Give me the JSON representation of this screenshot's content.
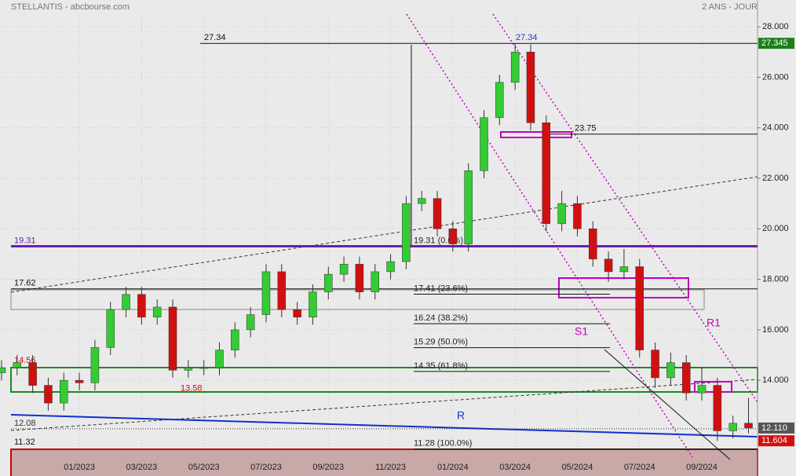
{
  "header": {
    "title": "STELLANTIS - abcbourse.com",
    "period": "2 ANS - JOUR"
  },
  "chart_data": {
    "type": "candlestick",
    "x": [
      -2.5,
      -2,
      -1.5,
      -1,
      -0.5,
      0,
      0.5,
      1,
      1.5,
      2,
      2.5,
      3,
      3.5,
      4,
      4.5,
      5,
      5.5,
      6,
      6.5,
      7,
      7.5,
      8,
      8.5,
      9,
      9.5,
      10,
      10.5,
      11,
      11.5,
      12,
      12.5,
      13,
      13.5,
      14,
      14.5,
      15,
      15.5,
      16,
      16.5,
      17,
      17.5,
      18,
      18.5,
      19,
      19.5,
      20,
      20.5,
      21,
      21.5
    ],
    "open": [
      14.3,
      14.5,
      14.7,
      13.8,
      13.1,
      14.0,
      13.9,
      15.3,
      16.8,
      17.4,
      16.5,
      16.9,
      14.4,
      14.5,
      14.5,
      15.2,
      16.0,
      16.6,
      18.3,
      16.8,
      16.5,
      17.5,
      18.2,
      18.6,
      17.5,
      18.3,
      18.7,
      21.0,
      21.2,
      20.0,
      19.4,
      22.3,
      24.4,
      25.8,
      27.0,
      24.2,
      20.2,
      21.0,
      20.0,
      18.8,
      18.3,
      18.5,
      15.2,
      14.1,
      14.7,
      13.5,
      13.8,
      12.0,
      12.3
    ],
    "high": [
      14.8,
      15.0,
      15.0,
      14.1,
      14.3,
      14.3,
      15.6,
      17.1,
      17.7,
      17.7,
      17.2,
      17.2,
      14.8,
      14.8,
      15.5,
      16.3,
      16.9,
      18.6,
      18.6,
      17.1,
      17.8,
      18.5,
      18.9,
      18.9,
      18.6,
      19.0,
      21.3,
      21.5,
      21.5,
      20.3,
      22.6,
      24.7,
      26.1,
      27.34,
      27.3,
      24.5,
      21.5,
      21.3,
      20.3,
      19.1,
      19.2,
      18.8,
      15.5,
      15.1,
      15.0,
      14.5,
      14.1,
      12.6,
      13.3
    ],
    "low": [
      14.0,
      14.2,
      13.5,
      12.8,
      12.8,
      13.6,
      13.6,
      15.0,
      16.5,
      16.2,
      16.2,
      14.1,
      14.1,
      14.2,
      14.2,
      14.9,
      15.7,
      16.3,
      16.5,
      16.2,
      16.2,
      17.2,
      17.9,
      17.2,
      17.2,
      18.0,
      18.4,
      20.7,
      19.7,
      19.1,
      19.1,
      22.0,
      24.1,
      25.5,
      23.9,
      19.9,
      19.9,
      19.7,
      18.5,
      17.9,
      18.0,
      14.9,
      13.7,
      13.8,
      13.2,
      13.2,
      11.6,
      11.7,
      11.9
    ],
    "close": [
      14.5,
      14.7,
      13.8,
      13.1,
      14.0,
      13.9,
      15.3,
      16.8,
      17.4,
      16.5,
      16.9,
      14.4,
      14.5,
      14.5,
      15.2,
      16.0,
      16.6,
      18.3,
      16.8,
      16.5,
      17.5,
      18.2,
      18.6,
      17.5,
      18.3,
      18.7,
      21.0,
      21.2,
      20.0,
      19.4,
      22.3,
      24.4,
      25.8,
      27.0,
      24.2,
      20.2,
      21.0,
      20.0,
      18.8,
      18.3,
      18.5,
      15.2,
      14.1,
      14.7,
      13.5,
      13.8,
      12.0,
      12.3,
      12.11
    ],
    "up_color": "#33cc33",
    "down_color": "#d01010",
    "xlim": [
      -2.55,
      21.79
    ],
    "xticks": [
      {
        "value": 0,
        "label": "01/2023"
      },
      {
        "value": 2,
        "label": "03/2023"
      },
      {
        "value": 4,
        "label": "05/2023"
      },
      {
        "value": 6,
        "label": "07/2023"
      },
      {
        "value": 8,
        "label": "09/2023"
      },
      {
        "value": 10,
        "label": "11/2023"
      },
      {
        "value": 12,
        "label": "01/2024"
      },
      {
        "value": 14,
        "label": "03/2024"
      },
      {
        "value": 16,
        "label": "05/2024"
      },
      {
        "value": 18,
        "label": "07/2024"
      },
      {
        "value": 20,
        "label": "09/2024"
      }
    ],
    "ylim": [
      10.21,
      29.06
    ],
    "yticks": [
      {
        "value": 14,
        "label": "14.000"
      },
      {
        "value": 16,
        "label": "16.000"
      },
      {
        "value": 18,
        "label": "18.000"
      },
      {
        "value": 20,
        "label": "20.000"
      },
      {
        "value": 22,
        "label": "22.000"
      },
      {
        "value": 24,
        "label": "24.000"
      },
      {
        "value": 26,
        "label": "26.000"
      },
      {
        "value": 28,
        "label": "28.000"
      }
    ],
    "grid": true,
    "levels": [
      {
        "value": 27.34,
        "label": "27.34"
      },
      {
        "value": 27.34,
        "label": "27.34"
      },
      {
        "value": 19.31,
        "label": "19.31"
      },
      {
        "value": 17.62,
        "label": "17.62"
      },
      {
        "value": 14.56,
        "label": "14.56"
      },
      {
        "value": 13.58,
        "label": "13.58"
      },
      {
        "value": 23.75,
        "label": "23.75"
      },
      {
        "value": 12.08,
        "label": "12.08"
      },
      {
        "value": 11.32,
        "label": "11.32"
      }
    ],
    "fib": [
      {
        "value": 19.31,
        "label": "19.31  (0.0%)"
      },
      {
        "value": 17.41,
        "label": "17.41  (23.6%)"
      },
      {
        "value": 16.24,
        "label": "16.24  (38.2%)"
      },
      {
        "value": 15.29,
        "label": "15.29  (50.0%)"
      },
      {
        "value": 14.35,
        "label": "14.35  (61.8%)"
      },
      {
        "value": 11.28,
        "label": "11.28  (100.0%)"
      }
    ],
    "labels": [
      "S1",
      "R1",
      "R"
    ],
    "price_badges": [
      {
        "value": 27.345,
        "label": "27.345",
        "color": "#1a7f1a"
      },
      {
        "value": 12.11,
        "label": "12.110",
        "color": "#555555"
      },
      {
        "value": 11.604,
        "label": "11.604",
        "color": "#d01010"
      }
    ]
  }
}
